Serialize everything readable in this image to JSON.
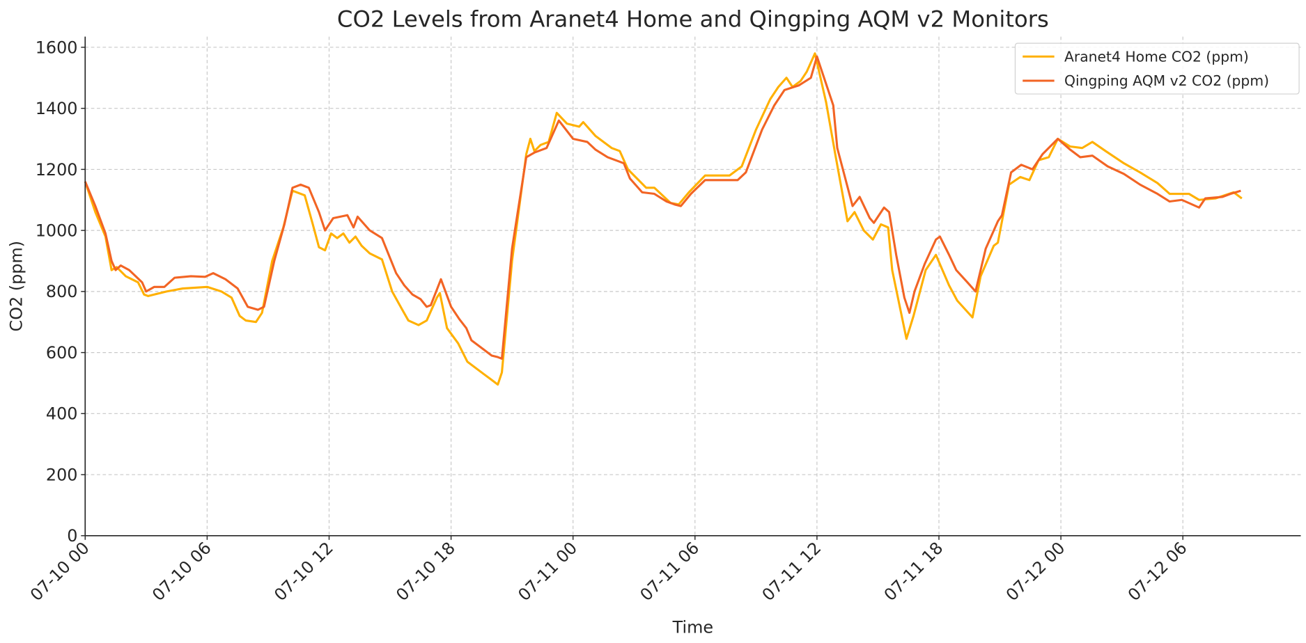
{
  "chart_data": {
    "type": "line",
    "title": "CO2 Levels from Aranet4 Home and Qingping AQM v2 Monitors",
    "xlabel": "Time",
    "ylabel": "CO2 (ppm)",
    "xlim": [
      "07-10 00:00",
      "07-12 11:48"
    ],
    "ylim": [
      0,
      1635
    ],
    "x_ticks": [
      "07-10 00",
      "07-10 06",
      "07-10 12",
      "07-10 18",
      "07-11 00",
      "07-11 06",
      "07-11 12",
      "07-11 18",
      "07-12 00",
      "07-12 06"
    ],
    "y_ticks": [
      0,
      200,
      400,
      600,
      800,
      1000,
      1200,
      1400,
      1600
    ],
    "grid": true,
    "legend_position": "top-right",
    "series": [
      {
        "name": "Aranet4 Home CO2 (ppm)",
        "color": "#FFB000",
        "points": [
          [
            "07-10 00:00",
            1160
          ],
          [
            "07-10 00:30",
            1060
          ],
          [
            "07-10 01:00",
            980
          ],
          [
            "07-10 01:18",
            870
          ],
          [
            "07-10 01:33",
            880
          ],
          [
            "07-10 02:00",
            850
          ],
          [
            "07-10 02:36",
            830
          ],
          [
            "07-10 02:54",
            790
          ],
          [
            "07-10 03:06",
            785
          ],
          [
            "07-10 04:00",
            800
          ],
          [
            "07-10 04:48",
            810
          ],
          [
            "07-10 06:00",
            815
          ],
          [
            "07-10 06:42",
            800
          ],
          [
            "07-10 07:12",
            780
          ],
          [
            "07-10 07:36",
            720
          ],
          [
            "07-10 07:54",
            705
          ],
          [
            "07-10 08:24",
            700
          ],
          [
            "07-10 08:42",
            730
          ],
          [
            "07-10 09:12",
            900
          ],
          [
            "07-10 09:45",
            1010
          ],
          [
            "07-10 10:12",
            1130
          ],
          [
            "07-10 10:48",
            1115
          ],
          [
            "07-10 11:12",
            1020
          ],
          [
            "07-10 11:30",
            945
          ],
          [
            "07-10 11:48",
            935
          ],
          [
            "07-10 12:06",
            990
          ],
          [
            "07-10 12:24",
            975
          ],
          [
            "07-10 12:42",
            990
          ],
          [
            "07-10 13:00",
            960
          ],
          [
            "07-10 13:18",
            980
          ],
          [
            "07-10 13:36",
            950
          ],
          [
            "07-10 14:00",
            925
          ],
          [
            "07-10 14:36",
            905
          ],
          [
            "07-10 15:06",
            800
          ],
          [
            "07-10 15:36",
            740
          ],
          [
            "07-10 15:54",
            705
          ],
          [
            "07-10 16:24",
            690
          ],
          [
            "07-10 16:48",
            705
          ],
          [
            "07-10 17:18",
            780
          ],
          [
            "07-10 17:27",
            795
          ],
          [
            "07-10 17:48",
            680
          ],
          [
            "07-10 18:21",
            630
          ],
          [
            "07-10 18:48",
            570
          ],
          [
            "07-10 19:36",
            530
          ],
          [
            "07-10 20:00",
            510
          ],
          [
            "07-10 20:18",
            495
          ],
          [
            "07-10 20:30",
            535
          ],
          [
            "07-10 21:00",
            900
          ],
          [
            "07-10 21:42",
            1250
          ],
          [
            "07-10 21:54",
            1300
          ],
          [
            "07-10 22:06",
            1260
          ],
          [
            "07-10 22:24",
            1280
          ],
          [
            "07-10 22:48",
            1290
          ],
          [
            "07-10 23:12",
            1385
          ],
          [
            "07-10 23:42",
            1350
          ],
          [
            "07-11 00:18",
            1340
          ],
          [
            "07-11 00:30",
            1355
          ],
          [
            "07-11 01:06",
            1310
          ],
          [
            "07-11 01:54",
            1270
          ],
          [
            "07-11 02:18",
            1260
          ],
          [
            "07-11 02:42",
            1200
          ],
          [
            "07-11 03:36",
            1140
          ],
          [
            "07-11 04:00",
            1140
          ],
          [
            "07-11 04:48",
            1090
          ],
          [
            "07-11 05:12",
            1085
          ],
          [
            "07-11 05:42",
            1125
          ],
          [
            "07-11 06:30",
            1180
          ],
          [
            "07-11 07:42",
            1180
          ],
          [
            "07-11 08:18",
            1210
          ],
          [
            "07-11 09:00",
            1330
          ],
          [
            "07-11 09:42",
            1430
          ],
          [
            "07-11 10:06",
            1470
          ],
          [
            "07-11 10:30",
            1500
          ],
          [
            "07-11 10:48",
            1470
          ],
          [
            "07-11 11:12",
            1490
          ],
          [
            "07-11 11:30",
            1520
          ],
          [
            "07-11 11:54",
            1580
          ],
          [
            "07-11 12:27",
            1420
          ],
          [
            "07-11 12:54",
            1250
          ],
          [
            "07-11 13:30",
            1030
          ],
          [
            "07-11 13:51",
            1060
          ],
          [
            "07-11 14:18",
            1000
          ],
          [
            "07-11 14:45",
            970
          ],
          [
            "07-11 15:09",
            1020
          ],
          [
            "07-11 15:30",
            1010
          ],
          [
            "07-11 15:42",
            870
          ],
          [
            "07-11 16:24",
            645
          ],
          [
            "07-11 16:45",
            720
          ],
          [
            "07-11 17:21",
            870
          ],
          [
            "07-11 17:51",
            920
          ],
          [
            "07-11 18:30",
            820
          ],
          [
            "07-11 18:54",
            770
          ],
          [
            "07-11 19:39",
            715
          ],
          [
            "07-11 20:03",
            850
          ],
          [
            "07-11 20:42",
            950
          ],
          [
            "07-11 20:54",
            960
          ],
          [
            "07-11 21:27",
            1150
          ],
          [
            "07-11 22:00",
            1175
          ],
          [
            "07-11 22:27",
            1165
          ],
          [
            "07-11 22:54",
            1230
          ],
          [
            "07-11 23:24",
            1240
          ],
          [
            "07-11 23:51",
            1300
          ],
          [
            "07-12 00:27",
            1275
          ],
          [
            "07-12 01:03",
            1270
          ],
          [
            "07-12 01:33",
            1290
          ],
          [
            "07-12 02:12",
            1260
          ],
          [
            "07-12 03:06",
            1220
          ],
          [
            "07-12 03:54",
            1190
          ],
          [
            "07-12 04:45",
            1155
          ],
          [
            "07-12 05:21",
            1120
          ],
          [
            "07-12 06:18",
            1120
          ],
          [
            "07-12 06:48",
            1100
          ],
          [
            "07-12 07:36",
            1105
          ],
          [
            "07-12 08:30",
            1125
          ],
          [
            "07-12 08:54",
            1105
          ]
        ]
      },
      {
        "name": "Qingping AQM v2 CO2 (ppm)",
        "color": "#F26424",
        "points": [
          [
            "07-10 00:00",
            1160
          ],
          [
            "07-10 00:30",
            1080
          ],
          [
            "07-10 01:00",
            990
          ],
          [
            "07-10 01:18",
            900
          ],
          [
            "07-10 01:30",
            870
          ],
          [
            "07-10 01:45",
            885
          ],
          [
            "07-10 02:10",
            870
          ],
          [
            "07-10 02:48",
            830
          ],
          [
            "07-10 03:00",
            800
          ],
          [
            "07-10 03:24",
            815
          ],
          [
            "07-10 03:54",
            815
          ],
          [
            "07-10 04:24",
            845
          ],
          [
            "07-10 05:12",
            850
          ],
          [
            "07-10 05:54",
            848
          ],
          [
            "07-10 06:18",
            860
          ],
          [
            "07-10 06:54",
            840
          ],
          [
            "07-10 07:30",
            810
          ],
          [
            "07-10 08:00",
            750
          ],
          [
            "07-10 08:30",
            740
          ],
          [
            "07-10 08:48",
            750
          ],
          [
            "07-10 09:18",
            900
          ],
          [
            "07-10 09:48",
            1020
          ],
          [
            "07-10 10:12",
            1140
          ],
          [
            "07-10 10:36",
            1150
          ],
          [
            "07-10 11:00",
            1140
          ],
          [
            "07-10 11:30",
            1060
          ],
          [
            "07-10 11:48",
            1000
          ],
          [
            "07-10 12:12",
            1040
          ],
          [
            "07-10 12:54",
            1050
          ],
          [
            "07-10 13:12",
            1010
          ],
          [
            "07-10 13:24",
            1045
          ],
          [
            "07-10 14:00",
            1000
          ],
          [
            "07-10 14:36",
            975
          ],
          [
            "07-10 15:18",
            860
          ],
          [
            "07-10 15:42",
            820
          ],
          [
            "07-10 16:06",
            790
          ],
          [
            "07-10 16:30",
            775
          ],
          [
            "07-10 16:48",
            750
          ],
          [
            "07-10 17:00",
            755
          ],
          [
            "07-10 17:30",
            840
          ],
          [
            "07-10 18:00",
            750
          ],
          [
            "07-10 18:24",
            710
          ],
          [
            "07-10 18:45",
            680
          ],
          [
            "07-10 19:00",
            640
          ],
          [
            "07-10 19:36",
            610
          ],
          [
            "07-10 20:00",
            590
          ],
          [
            "07-10 20:18",
            585
          ],
          [
            "07-10 20:30",
            580
          ],
          [
            "07-10 21:00",
            940
          ],
          [
            "07-10 21:42",
            1240
          ],
          [
            "07-10 22:06",
            1255
          ],
          [
            "07-10 22:42",
            1270
          ],
          [
            "07-10 23:18",
            1360
          ],
          [
            "07-11 00:00",
            1300
          ],
          [
            "07-11 00:42",
            1290
          ],
          [
            "07-11 01:06",
            1265
          ],
          [
            "07-11 01:42",
            1240
          ],
          [
            "07-11 02:30",
            1220
          ],
          [
            "07-11 02:48",
            1170
          ],
          [
            "07-11 03:24",
            1125
          ],
          [
            "07-11 04:00",
            1120
          ],
          [
            "07-11 04:36",
            1095
          ],
          [
            "07-11 05:00",
            1085
          ],
          [
            "07-11 05:18",
            1080
          ],
          [
            "07-11 05:48",
            1120
          ],
          [
            "07-11 06:30",
            1165
          ],
          [
            "07-11 07:24",
            1165
          ],
          [
            "07-11 08:06",
            1165
          ],
          [
            "07-11 08:30",
            1190
          ],
          [
            "07-11 09:18",
            1330
          ],
          [
            "07-11 09:54",
            1410
          ],
          [
            "07-11 10:24",
            1460
          ],
          [
            "07-11 11:06",
            1475
          ],
          [
            "07-11 11:42",
            1500
          ],
          [
            "07-11 12:00",
            1570
          ],
          [
            "07-11 12:48",
            1410
          ],
          [
            "07-11 13:00",
            1270
          ],
          [
            "07-11 13:45",
            1080
          ],
          [
            "07-11 14:06",
            1110
          ],
          [
            "07-11 14:36",
            1040
          ],
          [
            "07-11 14:48",
            1025
          ],
          [
            "07-11 15:18",
            1075
          ],
          [
            "07-11 15:33",
            1060
          ],
          [
            "07-11 15:54",
            920
          ],
          [
            "07-11 16:18",
            780
          ],
          [
            "07-11 16:33",
            730
          ],
          [
            "07-11 16:48",
            800
          ],
          [
            "07-11 17:18",
            890
          ],
          [
            "07-11 17:51",
            970
          ],
          [
            "07-11 18:03",
            980
          ],
          [
            "07-11 18:30",
            920
          ],
          [
            "07-11 18:51",
            870
          ],
          [
            "07-11 19:24",
            830
          ],
          [
            "07-11 19:48",
            800
          ],
          [
            "07-11 20:18",
            940
          ],
          [
            "07-11 20:54",
            1030
          ],
          [
            "07-11 21:06",
            1050
          ],
          [
            "07-11 21:33",
            1190
          ],
          [
            "07-11 22:03",
            1215
          ],
          [
            "07-11 22:36",
            1200
          ],
          [
            "07-11 23:06",
            1250
          ],
          [
            "07-11 23:51",
            1300
          ],
          [
            "07-12 00:27",
            1265
          ],
          [
            "07-12 00:57",
            1240
          ],
          [
            "07-12 01:33",
            1245
          ],
          [
            "07-12 02:18",
            1210
          ],
          [
            "07-12 03:06",
            1185
          ],
          [
            "07-12 03:54",
            1150
          ],
          [
            "07-12 04:45",
            1120
          ],
          [
            "07-12 05:21",
            1095
          ],
          [
            "07-12 05:57",
            1100
          ],
          [
            "07-12 06:48",
            1075
          ],
          [
            "07-12 07:06",
            1105
          ],
          [
            "07-12 07:57",
            1110
          ],
          [
            "07-12 08:21",
            1120
          ],
          [
            "07-12 08:51",
            1130
          ]
        ]
      }
    ]
  }
}
